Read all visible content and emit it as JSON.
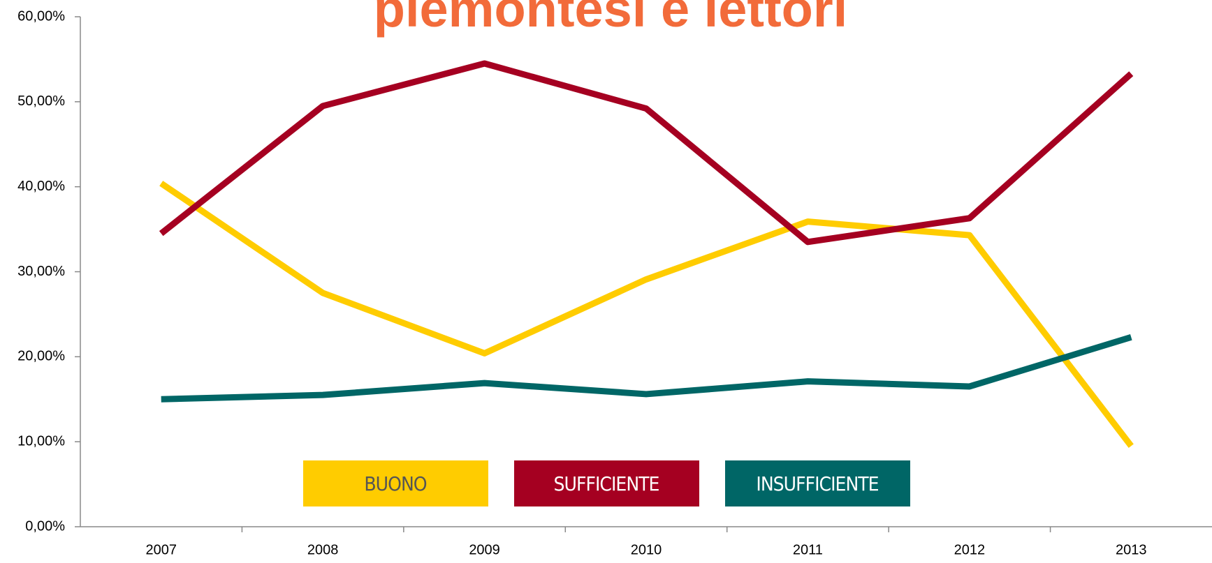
{
  "chart_data": {
    "type": "line",
    "title": "piemontesi e lettori",
    "categories": [
      "2007",
      "2008",
      "2009",
      "2010",
      "2011",
      "2012",
      "2013"
    ],
    "series": [
      {
        "name": "BUONO",
        "color": "#ffcc00",
        "values": [
          40.4,
          27.5,
          20.4,
          29.1,
          35.9,
          34.3,
          9.5
        ]
      },
      {
        "name": "SUFFICIENTE",
        "color": "#a50021",
        "values": [
          34.5,
          49.5,
          54.5,
          49.2,
          33.5,
          36.3,
          53.3
        ]
      },
      {
        "name": "INSUFFICIENTE",
        "color": "#006666",
        "values": [
          15.0,
          15.5,
          16.9,
          15.6,
          17.1,
          16.5,
          22.3
        ]
      }
    ],
    "ylim": [
      0,
      60
    ],
    "yticks": [
      {
        "value": 0,
        "label": "0,00%"
      },
      {
        "value": 10,
        "label": "10,00%"
      },
      {
        "value": 20,
        "label": "20,00%"
      },
      {
        "value": 30,
        "label": "30,00%"
      },
      {
        "value": 40,
        "label": "40,00%"
      },
      {
        "value": 50,
        "label": "50,00%"
      },
      {
        "value": 60,
        "label": "60,00%"
      }
    ]
  }
}
